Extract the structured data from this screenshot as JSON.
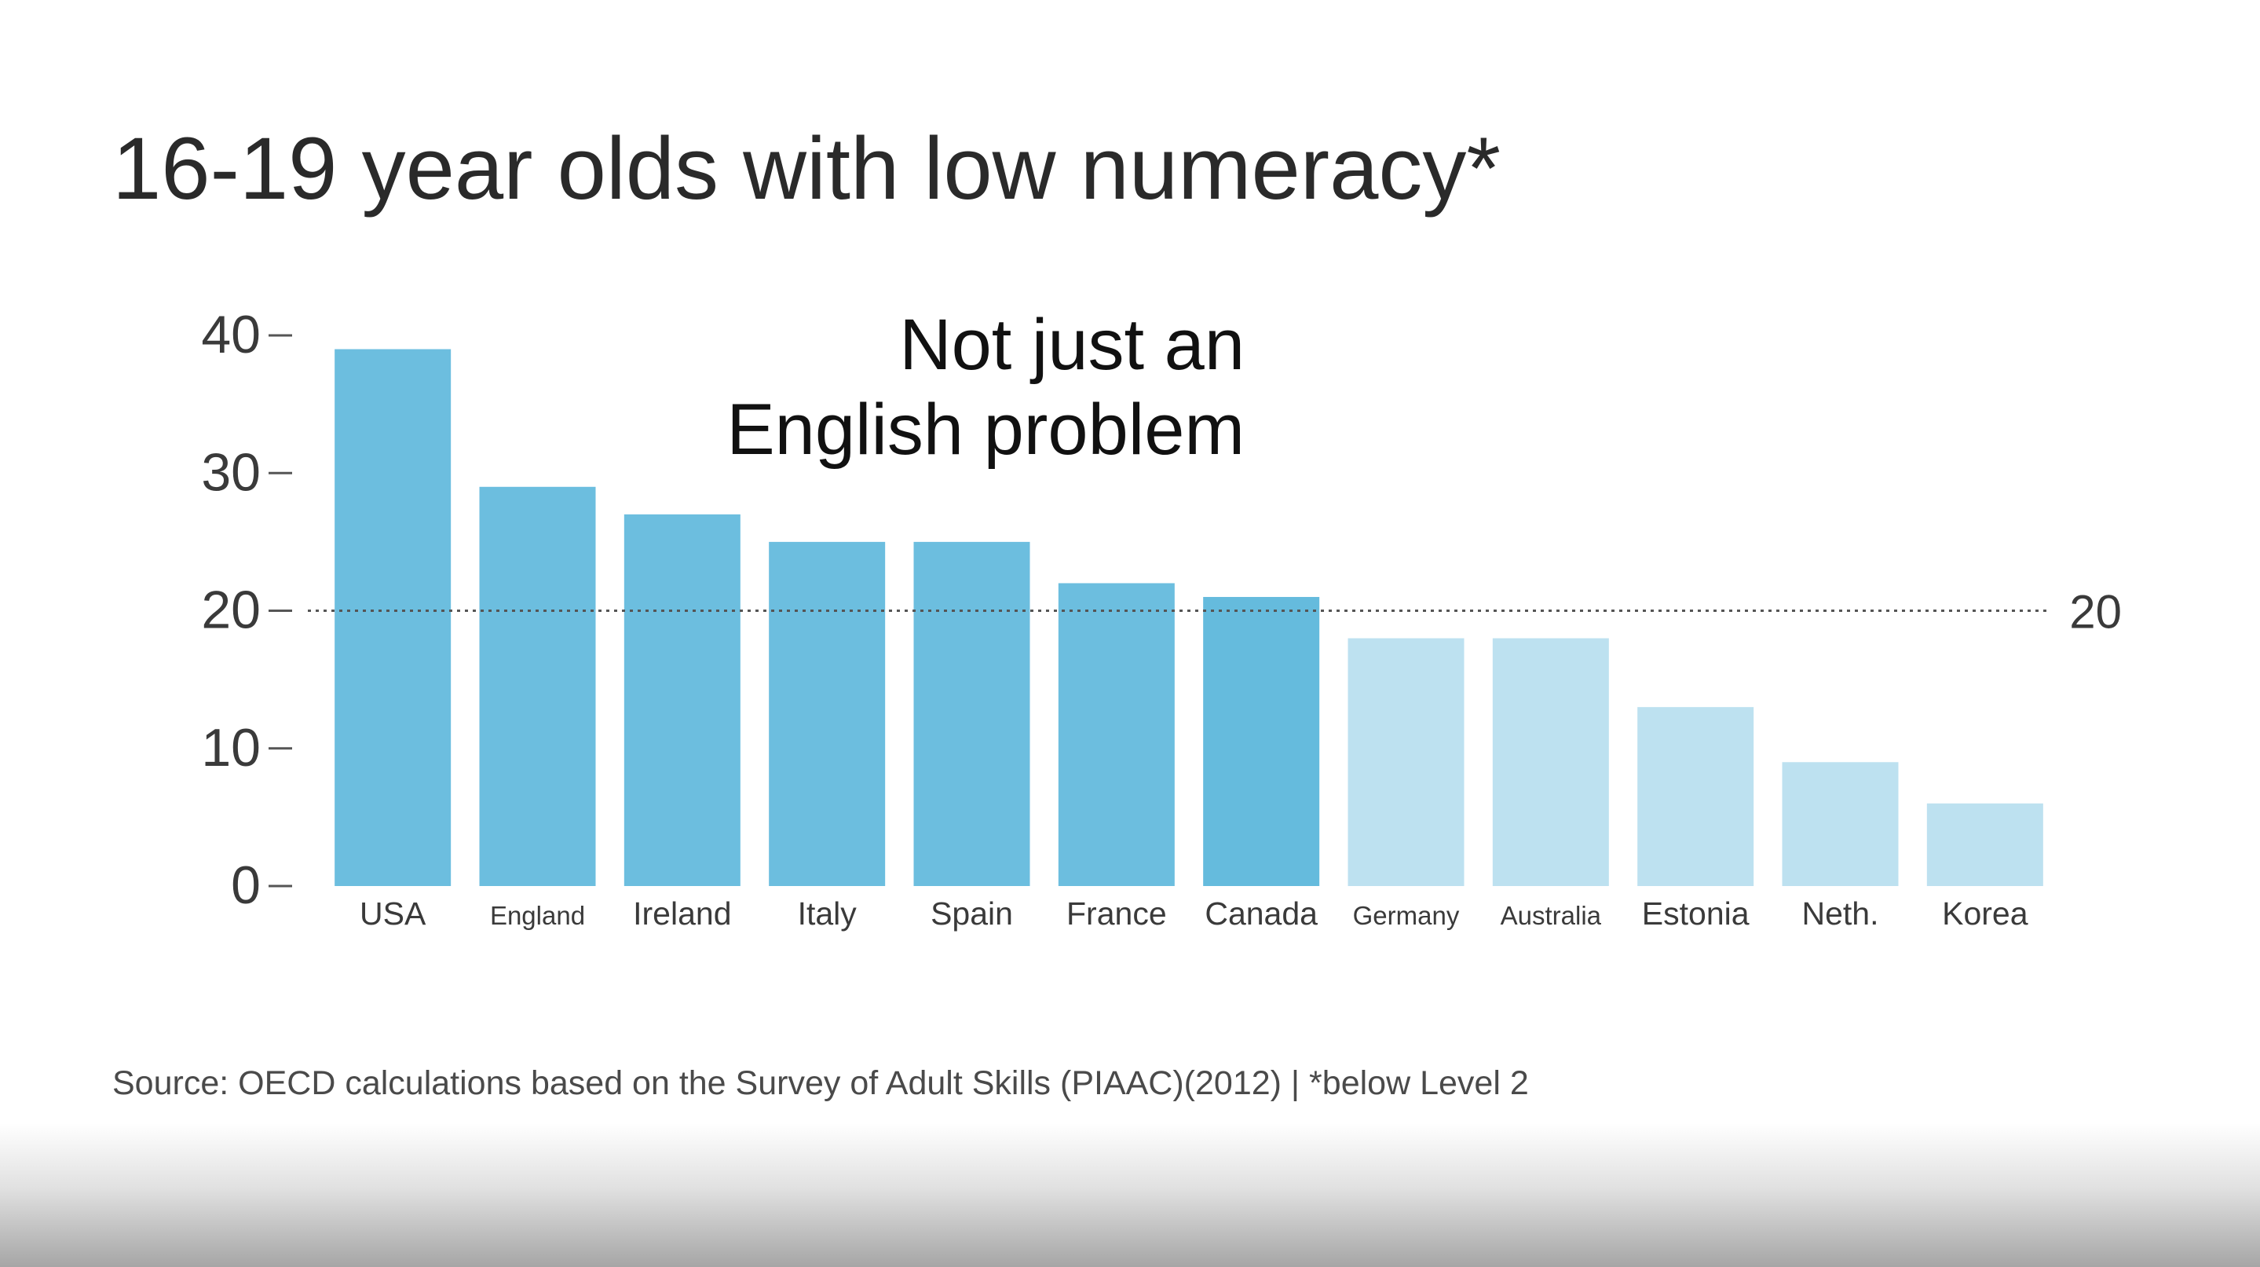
{
  "title": "16-19 year olds with low numeracy*",
  "source": "Source: OECD calculations based on the Survey of Adult Skills (PIAAC)(2012) | *below Level 2",
  "chart_data": {
    "type": "bar",
    "categories": [
      "USA",
      "England",
      "Ireland",
      "Italy",
      "Spain",
      "France",
      "Canada",
      "Germany",
      "Australia",
      "Estonia",
      "Neth.",
      "Korea"
    ],
    "values": [
      39,
      29,
      27,
      25,
      25,
      22,
      21,
      18,
      18,
      13,
      9,
      6
    ],
    "ylim": [
      0,
      40
    ],
    "yticks": [
      0,
      10,
      20,
      30,
      40
    ],
    "grid": false,
    "reference_line": {
      "value": 20,
      "label": "20",
      "style": "dotted"
    },
    "annotation": {
      "lines": [
        "Not just an",
        "English problem"
      ]
    },
    "colors": {
      "above_reference": "#6cbedf",
      "below_reference": "#bde1f0",
      "canada": "#65bbdd"
    }
  }
}
